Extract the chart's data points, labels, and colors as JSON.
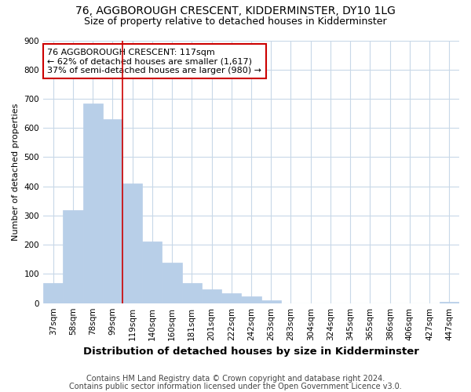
{
  "title": "76, AGGBOROUGH CRESCENT, KIDDERMINSTER, DY10 1LG",
  "subtitle": "Size of property relative to detached houses in Kidderminster",
  "xlabel": "Distribution of detached houses by size in Kidderminster",
  "ylabel": "Number of detached properties",
  "categories": [
    "37sqm",
    "58sqm",
    "78sqm",
    "99sqm",
    "119sqm",
    "140sqm",
    "160sqm",
    "181sqm",
    "201sqm",
    "222sqm",
    "242sqm",
    "263sqm",
    "283sqm",
    "304sqm",
    "324sqm",
    "345sqm",
    "365sqm",
    "386sqm",
    "406sqm",
    "427sqm",
    "447sqm"
  ],
  "values": [
    70,
    320,
    685,
    630,
    410,
    210,
    140,
    68,
    47,
    35,
    22,
    10,
    0,
    0,
    0,
    0,
    0,
    0,
    0,
    0,
    5
  ],
  "bar_color": "#b8cfe8",
  "bar_edge_color": "#b8cfe8",
  "vline_color": "#cc0000",
  "vline_x_index": 4,
  "annotation_text": "76 AGGBOROUGH CRESCENT: 117sqm\n← 62% of detached houses are smaller (1,617)\n37% of semi-detached houses are larger (980) →",
  "annotation_box_color": "white",
  "annotation_box_edge_color": "#cc0000",
  "ylim": [
    0,
    900
  ],
  "yticks": [
    0,
    100,
    200,
    300,
    400,
    500,
    600,
    700,
    800,
    900
  ],
  "footnote_line1": "Contains HM Land Registry data © Crown copyright and database right 2024.",
  "footnote_line2": "Contains public sector information licensed under the Open Government Licence v3.0.",
  "bg_color": "#ffffff",
  "plot_bg_color": "#ffffff",
  "grid_color": "#c8d8e8",
  "title_fontsize": 10,
  "subtitle_fontsize": 9,
  "xlabel_fontsize": 9.5,
  "ylabel_fontsize": 8,
  "tick_fontsize": 7.5,
  "annotation_fontsize": 8,
  "footnote_fontsize": 7
}
